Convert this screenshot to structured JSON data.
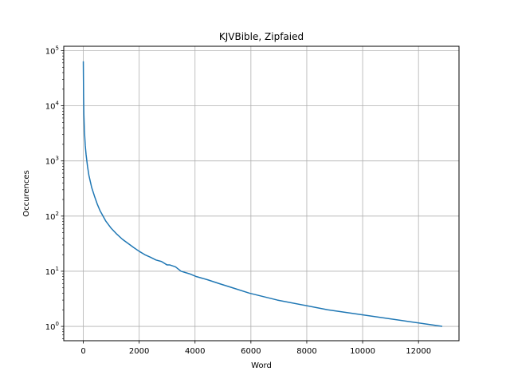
{
  "chart_data": {
    "type": "line",
    "title": "KJVBible, Zipfaied",
    "xlabel": "Word",
    "ylabel": "Occurences",
    "xlim": [
      -700,
      13450
    ],
    "ylim": [
      0.55,
      120000
    ],
    "yscale": "log",
    "grid": true,
    "xticks": [
      0,
      2000,
      4000,
      6000,
      8000,
      10000,
      12000
    ],
    "xtick_labels": [
      "0",
      "2000",
      "4000",
      "6000",
      "8000",
      "10000",
      "12000"
    ],
    "yticks": [
      1,
      10,
      100,
      1000,
      10000,
      100000
    ],
    "ytick_labels": [
      {
        "base": "10",
        "exp": "0"
      },
      {
        "base": "10",
        "exp": "1"
      },
      {
        "base": "10",
        "exp": "2"
      },
      {
        "base": "10",
        "exp": "3"
      },
      {
        "base": "10",
        "exp": "4"
      },
      {
        "base": "10",
        "exp": "5"
      }
    ],
    "series": [
      {
        "color": "#1f77b4",
        "x": [
          0,
          5,
          10,
          20,
          40,
          70,
          100,
          150,
          200,
          300,
          400,
          500,
          600,
          800,
          1000,
          1200,
          1400,
          1600,
          1800,
          2000,
          2200,
          2400,
          2600,
          2800,
          3000,
          3100,
          3300,
          3500,
          3800,
          4050,
          4450,
          4850,
          5350,
          5950,
          6950,
          8750,
          12850
        ],
        "y": [
          64000,
          30000,
          15000,
          7000,
          3500,
          1900,
          1300,
          800,
          550,
          330,
          230,
          165,
          125,
          82,
          60,
          47,
          38,
          32,
          27,
          23,
          20,
          18,
          16,
          15,
          13,
          13,
          12,
          10,
          9,
          8,
          7,
          6,
          5,
          4,
          3,
          2,
          1
        ]
      }
    ]
  }
}
